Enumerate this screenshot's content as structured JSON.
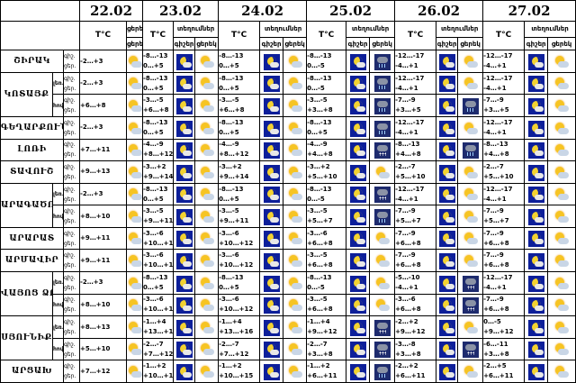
{
  "header": {
    "dates": [
      "22.02",
      "23.02",
      "24.02",
      "25.02",
      "26.02",
      "27.02"
    ],
    "temp_label": "T°C",
    "night_label": "գիշեր",
    "day_label": "ցերեկ",
    "day_label_short": "ցերե",
    "precip_label": "տեղումներ"
  },
  "labels": {
    "night": "գիշ.",
    "day": "ցեր."
  },
  "colors": {
    "night_icon": "#0d1f9a",
    "moon": "#f3d230",
    "sun": "#f6c423"
  },
  "rows": [
    {
      "region": "ՇԻՐԱԿ",
      "sub": "",
      "temps": [
        [
          "-2…+3"
        ],
        [
          "-8…-13",
          "0…+5"
        ],
        [
          "-8…-13",
          "0…+5"
        ],
        [
          "-8…-13",
          "0…-5"
        ],
        [
          "-12…-17",
          "-4…+1"
        ],
        [
          "-12…-17",
          "-4…+1"
        ]
      ],
      "icons": [
        "day",
        "night",
        "day",
        "night",
        "day",
        "night",
        "rain",
        "night",
        "day",
        "night",
        "day"
      ]
    },
    {
      "region": "ԿՈՏԱՅՔ",
      "sub": "լեռ.",
      "temps": [
        [
          "-2…+3"
        ],
        [
          "-8…-13",
          "0…+5"
        ],
        [
          "-8…-13",
          "0…+5"
        ],
        [
          "-8…-13",
          "0…-5"
        ],
        [
          "-12…-17",
          "-4…+1"
        ],
        [
          "-12…-17",
          "-4…+1"
        ]
      ],
      "icons": [
        "day",
        "night",
        "day",
        "night",
        "day",
        "night",
        "rain",
        "night",
        "day",
        "night",
        "day"
      ]
    },
    {
      "region": "",
      "sub": "հով.",
      "temps": [
        [
          "+6…+8"
        ],
        [
          "-3…-5",
          "+6…+8"
        ],
        [
          "-3…-5",
          "+6…+8"
        ],
        [
          "-3…-5",
          "+3…+8"
        ],
        [
          "-7…-9",
          "+3…+5"
        ],
        [
          "-7…-9",
          "+3…+5"
        ]
      ],
      "icons": [
        "day",
        "night",
        "day",
        "night",
        "day",
        "night",
        "rain",
        "night",
        "rain",
        "night",
        "day"
      ]
    },
    {
      "region": "ԳԵՂԱՐՔՈՒՆԻՔ",
      "sub": "",
      "temps": [
        [
          "-2…+3"
        ],
        [
          "-8…-13",
          "0…+5"
        ],
        [
          "-8…-13",
          "0…+5"
        ],
        [
          "-8…-13",
          "0…+5"
        ],
        [
          "-12…-17",
          "-4…+1"
        ],
        [
          "-12…-17",
          "-4…+1"
        ]
      ],
      "icons": [
        "day",
        "night",
        "day",
        "night",
        "day",
        "night",
        "rain",
        "night",
        "day",
        "night",
        "day"
      ]
    },
    {
      "region": "ԼՈՌԻ",
      "sub": "",
      "temps": [
        [
          "+7…+11"
        ],
        [
          "-4…-9",
          "+8…+12"
        ],
        [
          "-4…-9",
          "+8…+12"
        ],
        [
          "-4…-9",
          "+4…+8"
        ],
        [
          "-8…-13",
          "+4…+8"
        ],
        [
          "-8…-13",
          "+4…+8"
        ]
      ],
      "icons": [
        "day",
        "night",
        "day",
        "night",
        "day",
        "night",
        "snow",
        "night",
        "rain",
        "night",
        "day"
      ]
    },
    {
      "region": "ՏԱՎՈՒՇ",
      "sub": "",
      "temps": [
        [
          "+9…+13"
        ],
        [
          "-3…+2",
          "+9…+14"
        ],
        [
          "-3…+2",
          "+9…+14"
        ],
        [
          "-3…+2",
          "+5…+10"
        ],
        [
          "-2…-7",
          "+5…+10"
        ],
        [
          "-2…-7",
          "+5…+10"
        ]
      ],
      "icons": [
        "day",
        "night",
        "day",
        "night",
        "day",
        "night",
        "day",
        "night",
        "day",
        "night",
        "day"
      ]
    },
    {
      "region": "ԱՐԱԳԱԾՈՏՆ",
      "sub": "լեռ.",
      "temps": [
        [
          "-2…+3"
        ],
        [
          "-8…-13",
          "0…+5"
        ],
        [
          "-8…-13",
          "0…+5"
        ],
        [
          "-8…-13",
          "0…-5"
        ],
        [
          "-12…-17",
          "-4…+1"
        ],
        [
          "-12…-17",
          "-4…+1"
        ]
      ],
      "icons": [
        "day",
        "night",
        "day",
        "night",
        "day",
        "night",
        "snow",
        "night",
        "day",
        "night",
        "day"
      ]
    },
    {
      "region": "",
      "sub": "հով.",
      "temps": [
        [
          "+8…+10"
        ],
        [
          "-3…-5",
          "+9…+11"
        ],
        [
          "-3…-5",
          "+9…+11"
        ],
        [
          "-3…-5",
          "+5…+7"
        ],
        [
          "-7…-9",
          "+5…+7"
        ],
        [
          "-7…-9",
          "+5…+7"
        ]
      ],
      "icons": [
        "day",
        "night",
        "day",
        "night",
        "day",
        "night",
        "rain",
        "night",
        "day",
        "night",
        "day"
      ]
    },
    {
      "region": "ԱՐԱՐԱՏ",
      "sub": "",
      "temps": [
        [
          "+9…+11"
        ],
        [
          "-3…-6",
          "+10…+12"
        ],
        [
          "-3…-6",
          "+10…+12"
        ],
        [
          "-3…-6",
          "+6…+8"
        ],
        [
          "-7…-9",
          "+6…+8"
        ],
        [
          "-7…-9",
          "+6…+8"
        ]
      ],
      "icons": [
        "day",
        "night",
        "day",
        "night",
        "day",
        "night",
        "day",
        "night",
        "day",
        "night",
        "day"
      ]
    },
    {
      "region": "ԱՐՄԱՎԻՐ",
      "sub": "",
      "temps": [
        [
          "+9…+11"
        ],
        [
          "-3…-6",
          "+10…+12"
        ],
        [
          "-3…-6",
          "+10…+12"
        ],
        [
          "-3…-5",
          "+6…+8"
        ],
        [
          "-7…-9",
          "+6…+8"
        ],
        [
          "-7…-9",
          "+6…+8"
        ]
      ],
      "icons": [
        "day",
        "night",
        "day",
        "night",
        "day",
        "night",
        "day",
        "night",
        "day",
        "night",
        "day"
      ]
    },
    {
      "region": "ՎԱՅՈՑ ՁՈՐ",
      "sub": "լեռ.",
      "temps": [
        [
          "-2…+3"
        ],
        [
          "-8…-13",
          "0…+5"
        ],
        [
          "-8…-13",
          "0…+5"
        ],
        [
          "-8…-13",
          "0…-5"
        ],
        [
          "-5…-10",
          "-4…+1"
        ],
        [
          "-12…-17",
          "-4…+1"
        ]
      ],
      "icons": [
        "day",
        "night",
        "day",
        "night",
        "day",
        "night",
        "day",
        "night",
        "snow",
        "night",
        "day"
      ]
    },
    {
      "region": "",
      "sub": "հով.",
      "temps": [
        [
          "+8…+10"
        ],
        [
          "-3…-6",
          "+10…+12"
        ],
        [
          "-3…-6",
          "+10…+12"
        ],
        [
          "-3…-5",
          "+6…+8"
        ],
        [
          "-3…-6",
          "+6…+8"
        ],
        [
          "-7…-9",
          "+6…+8"
        ]
      ],
      "icons": [
        "day",
        "night",
        "day",
        "night",
        "day",
        "night",
        "day",
        "night",
        "snow",
        "night",
        "day"
      ]
    },
    {
      "region": "ՍՅՈՒՆԻՔ",
      "sub": "լեռ.",
      "temps": [
        [
          "+8…+13"
        ],
        [
          "-1…+4",
          "+13…+16"
        ],
        [
          "-1…+4",
          "+13…+16"
        ],
        [
          "-1…+4",
          "+9…+12"
        ],
        [
          "-2…+2",
          "+9…+12"
        ],
        [
          "0…-5",
          "+9…+12"
        ]
      ],
      "icons": [
        "day",
        "night",
        "day",
        "night",
        "day",
        "night",
        "snow",
        "night",
        "day",
        "night",
        "day"
      ]
    },
    {
      "region": "",
      "sub": "հով.",
      "temps": [
        [
          "+5…+10"
        ],
        [
          "-2…-7",
          "+7…+12"
        ],
        [
          "-2…-7",
          "+7…+12"
        ],
        [
          "-2…-7",
          "+3…+8"
        ],
        [
          "-3…-8",
          "+3…+8"
        ],
        [
          "-6…-11",
          "+3…+8"
        ]
      ],
      "icons": [
        "day",
        "night",
        "day",
        "night",
        "day",
        "night",
        "snow",
        "night",
        "snow",
        "night",
        "day"
      ]
    },
    {
      "region": "ԱՐՑԱԽ",
      "sub": "",
      "temps": [
        [
          "+7…+12"
        ],
        [
          "-1…+2",
          "+10…+15"
        ],
        [
          "-1…+2",
          "+10…+15"
        ],
        [
          "-1…+2",
          "+6…+11"
        ],
        [
          "-2…+2",
          "+6…+11"
        ],
        [
          "-2…+5",
          "+6…+11"
        ]
      ],
      "icons": [
        "day",
        "night",
        "day",
        "night",
        "day",
        "night",
        "rain",
        "night",
        "day",
        "night",
        "day"
      ]
    }
  ]
}
